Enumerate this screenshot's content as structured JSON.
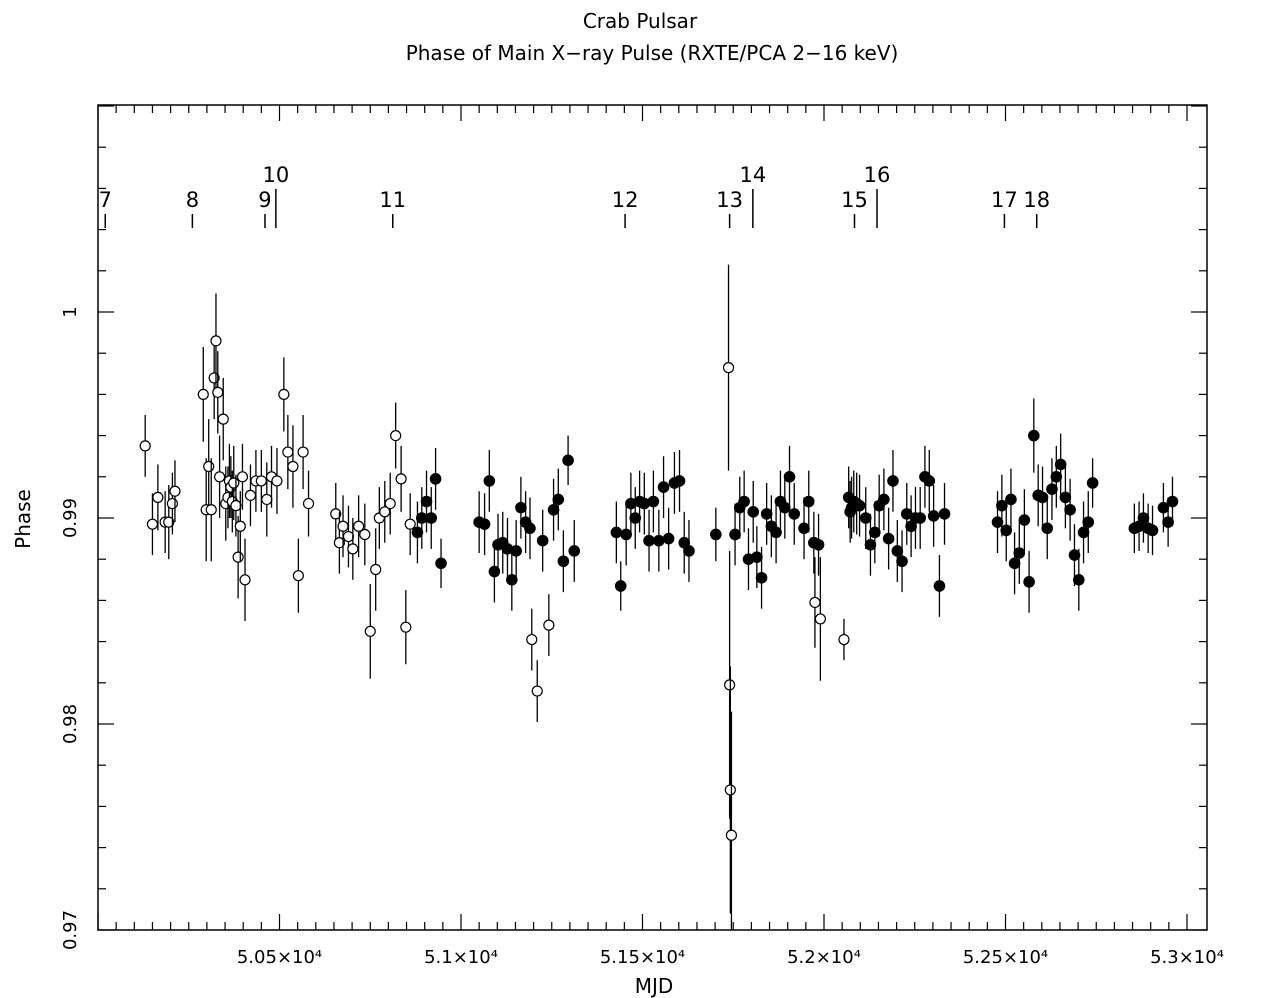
{
  "chart_data": {
    "type": "scatter",
    "title": "Crab Pulsar",
    "subtitle": "Phase of Main X−ray Pulse (RXTE/PCA 2−16 keV)",
    "xlabel": "MJD",
    "ylabel": "Phase",
    "xlim": [
      50000,
      53000
    ],
    "ylim": [
      0.97,
      1.0105
    ],
    "x_tick_labels": [
      {
        "value": 50500,
        "label": "5.05×10⁴"
      },
      {
        "value": 51000,
        "label": "5.1×10⁴"
      },
      {
        "value": 51500,
        "label": "5.15×10⁴"
      },
      {
        "value": 52000,
        "label": "5.2×10⁴"
      },
      {
        "value": 52500,
        "label": "5.25×10⁴"
      },
      {
        "value": 53000,
        "label": "5.3×10⁴"
      }
    ],
    "y_tick_labels": [
      {
        "value": 0.97,
        "label": "0.97"
      },
      {
        "value": 0.98,
        "label": "0.98"
      },
      {
        "value": 0.99,
        "label": "0.99"
      },
      {
        "value": 1.0,
        "label": "1"
      }
    ],
    "glitch_markers": [
      {
        "label": "7",
        "mjd": 50020,
        "tall": false
      },
      {
        "label": "8",
        "mjd": 50260,
        "tall": false
      },
      {
        "label": "9",
        "mjd": 50460,
        "tall": false
      },
      {
        "label": "10",
        "mjd": 50490,
        "tall": true
      },
      {
        "label": "11",
        "mjd": 50812,
        "tall": false
      },
      {
        "label": "12",
        "mjd": 51452,
        "tall": false
      },
      {
        "label": "13",
        "mjd": 51740,
        "tall": false
      },
      {
        "label": "14",
        "mjd": 51804,
        "tall": true
      },
      {
        "label": "15",
        "mjd": 52084,
        "tall": false
      },
      {
        "label": "16",
        "mjd": 52146,
        "tall": true
      },
      {
        "label": "17",
        "mjd": 52497,
        "tall": false
      },
      {
        "label": "18",
        "mjd": 52586,
        "tall": false
      }
    ],
    "series": [
      {
        "marker": "open-circle",
        "points": [
          [
            50130,
            0.9935,
            0.0015
          ],
          [
            50150,
            0.9897,
            0.0015
          ],
          [
            50165,
            0.991,
            0.0016
          ],
          [
            50185,
            0.9898,
            0.0015
          ],
          [
            50195,
            0.9898,
            0.0018
          ],
          [
            50205,
            0.9907,
            0.0015
          ],
          [
            50212,
            0.9913,
            0.0015
          ],
          [
            50290,
            0.996,
            0.0023
          ],
          [
            50298,
            0.9904,
            0.0025
          ],
          [
            50305,
            0.9925,
            0.0023
          ],
          [
            50312,
            0.9904,
            0.0025
          ],
          [
            50320,
            0.9968,
            0.002
          ],
          [
            50325,
            0.9986,
            0.0023
          ],
          [
            50330,
            0.9961,
            0.002
          ],
          [
            50335,
            0.992,
            0.002
          ],
          [
            50345,
            0.9948,
            0.002
          ],
          [
            50352,
            0.9907,
            0.0018
          ],
          [
            50358,
            0.991,
            0.0015
          ],
          [
            50362,
            0.9918,
            0.0018
          ],
          [
            50366,
            0.9915,
            0.0015
          ],
          [
            50370,
            0.9908,
            0.0015
          ],
          [
            50374,
            0.9917,
            0.0018
          ],
          [
            50380,
            0.9906,
            0.0015
          ],
          [
            50386,
            0.9881,
            0.002
          ],
          [
            50392,
            0.9896,
            0.0017
          ],
          [
            50398,
            0.992,
            0.0016
          ],
          [
            50405,
            0.987,
            0.002
          ],
          [
            50420,
            0.9911,
            0.0015
          ],
          [
            50435,
            0.9918,
            0.0015
          ],
          [
            50450,
            0.9918,
            0.0015
          ],
          [
            50465,
            0.9909,
            0.0018
          ],
          [
            50478,
            0.992,
            0.0015
          ],
          [
            50493,
            0.9918,
            0.0016
          ],
          [
            50512,
            0.996,
            0.0018
          ],
          [
            50523,
            0.9932,
            0.0018
          ],
          [
            50537,
            0.9925,
            0.002
          ],
          [
            50552,
            0.9872,
            0.0018
          ],
          [
            50565,
            0.9932,
            0.0018
          ],
          [
            50580,
            0.9907,
            0.0016
          ],
          [
            50655,
            0.9902,
            0.0015
          ],
          [
            50665,
            0.9888,
            0.0015
          ],
          [
            50675,
            0.9896,
            0.0015
          ],
          [
            50690,
            0.9891,
            0.0015
          ],
          [
            50702,
            0.9885,
            0.0015
          ],
          [
            50718,
            0.9896,
            0.0015
          ],
          [
            50735,
            0.9892,
            0.0015
          ],
          [
            50750,
            0.9845,
            0.0023
          ],
          [
            50765,
            0.9875,
            0.002
          ],
          [
            50775,
            0.99,
            0.0015
          ],
          [
            50790,
            0.9903,
            0.0015
          ],
          [
            50805,
            0.9907,
            0.0015
          ],
          [
            50820,
            0.994,
            0.0016
          ],
          [
            50835,
            0.9919,
            0.0016
          ],
          [
            50848,
            0.9847,
            0.0018
          ],
          [
            50860,
            0.9897,
            0.0015
          ],
          [
            51195,
            0.9841,
            0.0015
          ],
          [
            51210,
            0.9816,
            0.0015
          ],
          [
            51242,
            0.9848,
            0.0015
          ],
          [
            51737,
            0.9973,
            0.005
          ],
          [
            51740,
            0.9819,
            0.0065
          ],
          [
            51742,
            0.9768,
            0.006
          ],
          [
            51745,
            0.9746,
            0.006
          ],
          [
            51975,
            0.9859,
            0.0022
          ],
          [
            51990,
            0.9851,
            0.003
          ],
          [
            52055,
            0.9841,
            0.001
          ]
        ]
      },
      {
        "marker": "filled-circle",
        "points": [
          [
            50880,
            0.9893,
            0.0015
          ],
          [
            50892,
            0.99,
            0.0015
          ],
          [
            50905,
            0.9908,
            0.0015
          ],
          [
            50918,
            0.99,
            0.0015
          ],
          [
            50930,
            0.9919,
            0.0015
          ],
          [
            50945,
            0.9878,
            0.0012
          ],
          [
            51050,
            0.9898,
            0.0015
          ],
          [
            51065,
            0.9897,
            0.0015
          ],
          [
            51078,
            0.9918,
            0.0015
          ],
          [
            51092,
            0.9874,
            0.0015
          ],
          [
            51102,
            0.9887,
            0.0015
          ],
          [
            51115,
            0.9888,
            0.0015
          ],
          [
            51128,
            0.9885,
            0.0015
          ],
          [
            51140,
            0.987,
            0.0015
          ],
          [
            51152,
            0.9884,
            0.0015
          ],
          [
            51165,
            0.9905,
            0.0015
          ],
          [
            51178,
            0.9898,
            0.0015
          ],
          [
            51190,
            0.9895,
            0.0015
          ],
          [
            51225,
            0.9889,
            0.0015
          ],
          [
            51255,
            0.9904,
            0.0015
          ],
          [
            51268,
            0.9909,
            0.0015
          ],
          [
            51282,
            0.9879,
            0.0015
          ],
          [
            51295,
            0.9928,
            0.0012
          ],
          [
            51312,
            0.9884,
            0.0015
          ],
          [
            51428,
            0.9893,
            0.0015
          ],
          [
            51440,
            0.9867,
            0.0012
          ],
          [
            51455,
            0.9892,
            0.0015
          ],
          [
            51468,
            0.9907,
            0.0015
          ],
          [
            51480,
            0.99,
            0.0015
          ],
          [
            51492,
            0.9908,
            0.0015
          ],
          [
            51505,
            0.9907,
            0.0015
          ],
          [
            51518,
            0.9889,
            0.0015
          ],
          [
            51530,
            0.9908,
            0.0015
          ],
          [
            51545,
            0.9889,
            0.0015
          ],
          [
            51558,
            0.9915,
            0.0015
          ],
          [
            51572,
            0.989,
            0.0015
          ],
          [
            51588,
            0.9917,
            0.0015
          ],
          [
            51602,
            0.9918,
            0.0015
          ],
          [
            51615,
            0.9888,
            0.0015
          ],
          [
            51628,
            0.9884,
            0.0015
          ],
          [
            51702,
            0.9892,
            0.0013
          ],
          [
            51755,
            0.9892,
            0.0015
          ],
          [
            51768,
            0.9905,
            0.0015
          ],
          [
            51780,
            0.9908,
            0.0015
          ],
          [
            51792,
            0.988,
            0.0015
          ],
          [
            51805,
            0.9903,
            0.0015
          ],
          [
            51815,
            0.9881,
            0.0015
          ],
          [
            51828,
            0.9871,
            0.0015
          ],
          [
            51842,
            0.9902,
            0.0015
          ],
          [
            51855,
            0.9896,
            0.0015
          ],
          [
            51868,
            0.9893,
            0.0015
          ],
          [
            51880,
            0.9908,
            0.0015
          ],
          [
            51892,
            0.9905,
            0.0015
          ],
          [
            51905,
            0.992,
            0.0015
          ],
          [
            51918,
            0.9902,
            0.0015
          ],
          [
            51945,
            0.9895,
            0.0015
          ],
          [
            51958,
            0.9908,
            0.0015
          ],
          [
            51972,
            0.9888,
            0.0015
          ],
          [
            51985,
            0.9887,
            0.0015
          ],
          [
            52068,
            0.991,
            0.0015
          ],
          [
            52072,
            0.9903,
            0.0015
          ],
          [
            52076,
            0.9905,
            0.0015
          ],
          [
            52082,
            0.9908,
            0.0015
          ],
          [
            52090,
            0.9907,
            0.0015
          ],
          [
            52098,
            0.9906,
            0.0015
          ],
          [
            52115,
            0.99,
            0.0015
          ],
          [
            52128,
            0.9887,
            0.0015
          ],
          [
            52140,
            0.9893,
            0.0015
          ],
          [
            52152,
            0.9906,
            0.0015
          ],
          [
            52165,
            0.9909,
            0.0015
          ],
          [
            52178,
            0.989,
            0.0015
          ],
          [
            52190,
            0.9918,
            0.0015
          ],
          [
            52202,
            0.9884,
            0.0015
          ],
          [
            52215,
            0.9879,
            0.0015
          ],
          [
            52228,
            0.9902,
            0.0015
          ],
          [
            52240,
            0.9896,
            0.0015
          ],
          [
            52252,
            0.99,
            0.0015
          ],
          [
            52265,
            0.99,
            0.0015
          ],
          [
            52278,
            0.992,
            0.0015
          ],
          [
            52290,
            0.9918,
            0.0015
          ],
          [
            52302,
            0.9901,
            0.0015
          ],
          [
            52318,
            0.9867,
            0.0015
          ],
          [
            52332,
            0.9902,
            0.0015
          ],
          [
            52478,
            0.9898,
            0.0015
          ],
          [
            52490,
            0.9906,
            0.0015
          ],
          [
            52502,
            0.9894,
            0.0015
          ],
          [
            52515,
            0.9909,
            0.0015
          ],
          [
            52525,
            0.9878,
            0.0015
          ],
          [
            52538,
            0.9883,
            0.0015
          ],
          [
            52552,
            0.9899,
            0.0015
          ],
          [
            52565,
            0.9869,
            0.0015
          ],
          [
            52578,
            0.994,
            0.0018
          ],
          [
            52590,
            0.9911,
            0.0015
          ],
          [
            52602,
            0.991,
            0.0015
          ],
          [
            52615,
            0.9895,
            0.0015
          ],
          [
            52628,
            0.9914,
            0.0015
          ],
          [
            52640,
            0.992,
            0.0015
          ],
          [
            52652,
            0.9926,
            0.0015
          ],
          [
            52665,
            0.991,
            0.0015
          ],
          [
            52678,
            0.9904,
            0.0015
          ],
          [
            52690,
            0.9882,
            0.0015
          ],
          [
            52702,
            0.987,
            0.0015
          ],
          [
            52715,
            0.9893,
            0.0015
          ],
          [
            52728,
            0.9898,
            0.0015
          ],
          [
            52740,
            0.9917,
            0.0012
          ],
          [
            52855,
            0.9895,
            0.0012
          ],
          [
            52868,
            0.9896,
            0.0012
          ],
          [
            52880,
            0.99,
            0.0012
          ],
          [
            52893,
            0.9895,
            0.0012
          ],
          [
            52905,
            0.9894,
            0.0012
          ],
          [
            52935,
            0.9905,
            0.0012
          ],
          [
            52948,
            0.9898,
            0.0012
          ],
          [
            52960,
            0.9908,
            0.0012
          ]
        ]
      }
    ]
  }
}
